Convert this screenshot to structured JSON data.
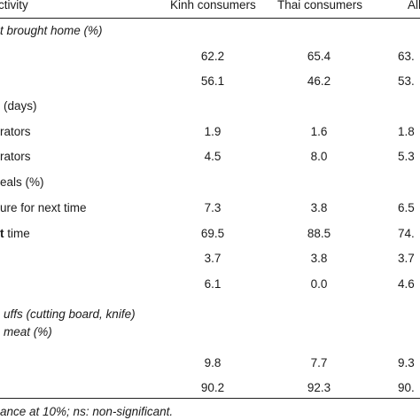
{
  "header": {
    "activity": "ctivity",
    "kinh": "Kinh consumers",
    "thai": "Thai consumers",
    "all": "All"
  },
  "rows": [
    {
      "label": "t brought home (%)",
      "italic": true
    },
    {
      "label": "",
      "v1": "62.2",
      "v2": "65.4",
      "v3": "63."
    },
    {
      "label": "",
      "v1": "56.1",
      "v2": "46.2",
      "v3": "53."
    },
    {
      "label": "(days)"
    },
    {
      "label": "rators",
      "v1": "1.9",
      "v2": "1.6",
      "v3": "1.8"
    },
    {
      "label": "rators",
      "v1": "4.5",
      "v2": "8.0",
      "v3": "5.3"
    },
    {
      "label": "eals (%)"
    },
    {
      "label": "ure for next time",
      "v1": "7.3",
      "v2": "3.8",
      "v3": "6.5"
    },
    {
      "label_bold": "t",
      "label_rest": " time",
      "v1": "69.5",
      "v2": "88.5",
      "v3": "74."
    },
    {
      "label": "",
      "v1": "3.7",
      "v2": "3.8",
      "v3": "3.7"
    },
    {
      "label": "",
      "v1": "6.1",
      "v2": "0.0",
      "v3": "4.6"
    },
    {
      "label_line1": "uffs (cutting board, knife)",
      "label_line2": "meat (%)",
      "italic": true
    },
    {
      "label": "",
      "v1": "9.8",
      "v2": "7.7",
      "v3": "9.3"
    },
    {
      "label": "",
      "v1": "90.2",
      "v2": "92.3",
      "v3": "90."
    }
  ],
  "footnote": "ance at 10%; ns: non-significant."
}
